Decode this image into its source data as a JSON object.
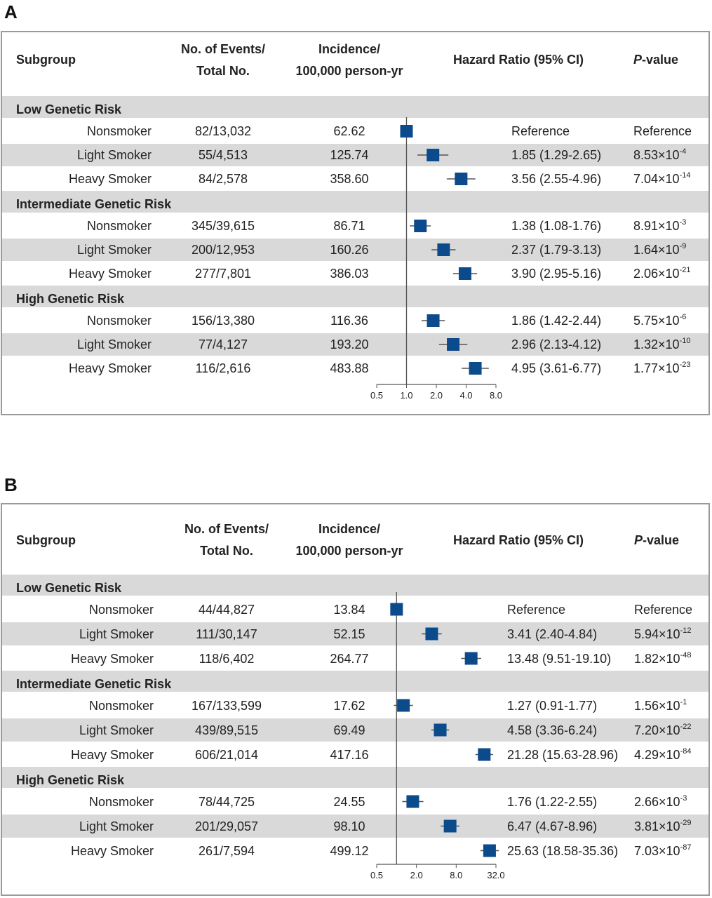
{
  "colors": {
    "band": "#d9d9d9",
    "marker": "#0b4a8b",
    "ci_line": "#555555",
    "frame": "#9a9a9a"
  },
  "chart_data": [
    {
      "type": "forest",
      "panel": "A",
      "headers": {
        "subgroup": "Subgroup",
        "events_1": "No. of Events/",
        "events_2": "Total  No.",
        "incidence_1": "Incidence/",
        "incidence_2": "100,000 person-yr",
        "hr": "Hazard Ratio (95% CI)",
        "p_italic": "P",
        "p_rest": "-value"
      },
      "x_scale": "log2",
      "xlim": [
        0.5,
        8.0
      ],
      "reference_line": 1.0,
      "tick_labels": [
        "0.5",
        "1.0",
        "2.0",
        "4.0",
        "8.0"
      ],
      "tick_values": [
        0.5,
        1.0,
        2.0,
        4.0,
        8.0
      ],
      "groups": [
        {
          "name": "Low  Genetic Risk",
          "rows": [
            {
              "label": "Nonsmoker",
              "events": "82/13,032",
              "incidence": "62.62",
              "hr": 1.0,
              "lo": 1.0,
              "hi": 1.0,
              "hr_text": "Reference",
              "p_text": "Reference",
              "p_mant": "",
              "p_exp": ""
            },
            {
              "label": "Light Smoker",
              "events": "55/4,513",
              "incidence": "125.74",
              "hr": 1.85,
              "lo": 1.29,
              "hi": 2.65,
              "hr_text": "1.85 (1.29-2.65)",
              "p_text": "",
              "p_mant": "8.53×10",
              "p_exp": "-4"
            },
            {
              "label": "Heavy Smoker",
              "events": "84/2,578",
              "incidence": "358.60",
              "hr": 3.56,
              "lo": 2.55,
              "hi": 4.96,
              "hr_text": "3.56 (2.55-4.96)",
              "p_text": "",
              "p_mant": "7.04×10",
              "p_exp": "-14"
            }
          ]
        },
        {
          "name": "Intermediate Genetic Risk",
          "rows": [
            {
              "label": "Nonsmoker",
              "events": "345/39,615",
              "incidence": "86.71",
              "hr": 1.38,
              "lo": 1.08,
              "hi": 1.76,
              "hr_text": "1.38 (1.08-1.76)",
              "p_text": "",
              "p_mant": "8.91×10",
              "p_exp": "-3"
            },
            {
              "label": "Light Smoker",
              "events": "200/12,953",
              "incidence": "160.26",
              "hr": 2.37,
              "lo": 1.79,
              "hi": 3.13,
              "hr_text": "2.37 (1.79-3.13)",
              "p_text": "",
              "p_mant": "1.64×10",
              "p_exp": "-9"
            },
            {
              "label": "Heavy Smoker",
              "events": "277/7,801",
              "incidence": "386.03",
              "hr": 3.9,
              "lo": 2.95,
              "hi": 5.16,
              "hr_text": "3.90 (2.95-5.16)",
              "p_text": "",
              "p_mant": "2.06×10",
              "p_exp": "-21"
            }
          ]
        },
        {
          "name": "High Genetic Risk",
          "rows": [
            {
              "label": "Nonsmoker",
              "events": "156/13,380",
              "incidence": "116.36",
              "hr": 1.86,
              "lo": 1.42,
              "hi": 2.44,
              "hr_text": "1.86 (1.42-2.44)",
              "p_text": "",
              "p_mant": "5.75×10",
              "p_exp": "-6"
            },
            {
              "label": "Light Smoker",
              "events": "77/4,127",
              "incidence": "193.20",
              "hr": 2.96,
              "lo": 2.13,
              "hi": 4.12,
              "hr_text": "2.96 (2.13-4.12)",
              "p_text": "",
              "p_mant": "1.32×10",
              "p_exp": "-10"
            },
            {
              "label": "Heavy Smoker",
              "events": "116/2,616",
              "incidence": "483.88",
              "hr": 4.95,
              "lo": 3.61,
              "hi": 6.77,
              "hr_text": "4.95 (3.61-6.77)",
              "p_text": "",
              "p_mant": "1.77×10",
              "p_exp": "-23"
            }
          ]
        }
      ]
    },
    {
      "type": "forest",
      "panel": "B",
      "headers": {
        "subgroup": "Subgroup",
        "events_1": "No. of Events/",
        "events_2": "Total  No.",
        "incidence_1": "Incidence/",
        "incidence_2": "100,000 person-yr",
        "hr": "Hazard Ratio (95% CI)",
        "p_italic": "P",
        "p_rest": "-value"
      },
      "x_scale": "log2",
      "xlim": [
        0.5,
        32.0
      ],
      "reference_line": 1.0,
      "tick_labels": [
        "0.5",
        "2.0",
        "8.0",
        "32.0"
      ],
      "tick_values": [
        0.5,
        2.0,
        8.0,
        32.0
      ],
      "groups": [
        {
          "name": "Low  Genetic Risk",
          "rows": [
            {
              "label": "Nonsmoker",
              "events": "44/44,827",
              "incidence": "13.84",
              "hr": 1.0,
              "lo": 1.0,
              "hi": 1.0,
              "hr_text": "Reference",
              "p_text": "Reference",
              "p_mant": "",
              "p_exp": ""
            },
            {
              "label": "Light Smoker",
              "events": "111/30,147",
              "incidence": "52.15",
              "hr": 3.41,
              "lo": 2.4,
              "hi": 4.84,
              "hr_text": "3.41 (2.40-4.84)",
              "p_text": "",
              "p_mant": "5.94×10",
              "p_exp": "-12"
            },
            {
              "label": "Heavy Smoker",
              "events": "118/6,402",
              "incidence": "264.77",
              "hr": 13.48,
              "lo": 9.51,
              "hi": 19.1,
              "hr_text": "13.48 (9.51-19.10)",
              "p_text": "",
              "p_mant": "1.82×10",
              "p_exp": "-48"
            }
          ]
        },
        {
          "name": "Intermediate Genetic Risk",
          "rows": [
            {
              "label": "Nonsmoker",
              "events": "167/133,599",
              "incidence": "17.62",
              "hr": 1.27,
              "lo": 0.91,
              "hi": 1.77,
              "hr_text": "1.27 (0.91-1.77)",
              "p_text": "",
              "p_mant": "1.56×10",
              "p_exp": "-1"
            },
            {
              "label": "Light Smoker",
              "events": "439/89,515",
              "incidence": "69.49",
              "hr": 4.58,
              "lo": 3.36,
              "hi": 6.24,
              "hr_text": "4.58 (3.36-6.24)",
              "p_text": "",
              "p_mant": "7.20×10",
              "p_exp": "-22"
            },
            {
              "label": "Heavy Smoker",
              "events": "606/21,014",
              "incidence": "417.16",
              "hr": 21.28,
              "lo": 15.63,
              "hi": 28.96,
              "hr_text": "21.28 (15.63-28.96)",
              "p_text": "",
              "p_mant": "4.29×10",
              "p_exp": "-84"
            }
          ]
        },
        {
          "name": "High Genetic Risk",
          "rows": [
            {
              "label": "Nonsmoker",
              "events": "78/44,725",
              "incidence": "24.55",
              "hr": 1.76,
              "lo": 1.22,
              "hi": 2.55,
              "hr_text": "1.76 (1.22-2.55)",
              "p_text": "",
              "p_mant": "2.66×10",
              "p_exp": "-3"
            },
            {
              "label": "Light Smoker",
              "events": "201/29,057",
              "incidence": "98.10",
              "hr": 6.47,
              "lo": 4.67,
              "hi": 8.96,
              "hr_text": "6.47 (4.67-8.96)",
              "p_text": "",
              "p_mant": "3.81×10",
              "p_exp": "-29"
            },
            {
              "label": "Heavy Smoker",
              "events": "261/7,594",
              "incidence": "499.12",
              "hr": 25.63,
              "lo": 18.58,
              "hi": 35.36,
              "hr_text": "25.63 (18.58-35.36)",
              "p_text": "",
              "p_mant": "7.03×10",
              "p_exp": "-87"
            }
          ]
        }
      ]
    }
  ]
}
